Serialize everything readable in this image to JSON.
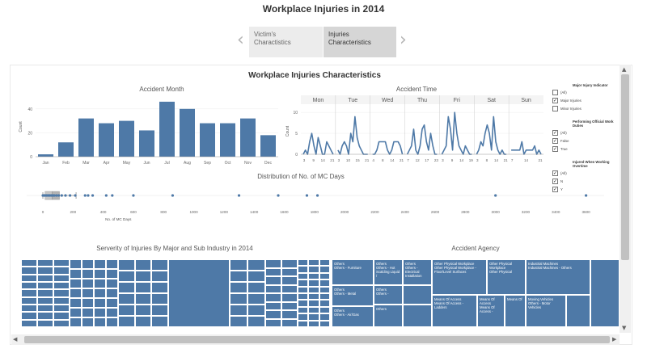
{
  "page_title": "Workplace Injuries in 2014",
  "tabs": [
    {
      "label_line1": "Victim's",
      "label_line2": "Charactistics"
    },
    {
      "label_line1": "Injuries Characteristics",
      "label_line2": ""
    }
  ],
  "dashboard_title": "Workplace Injuries Characteristics",
  "colors": {
    "bar": "#4e79a7",
    "header_bg": "#f4f4f4"
  },
  "icons": {
    "prev": "chevron-left-icon",
    "next": "chevron-right-icon"
  },
  "filters": [
    {
      "title": "Major Injury Indicator",
      "options": [
        {
          "label": "(All)",
          "checked": false
        },
        {
          "label": "Major Injuries",
          "checked": true
        },
        {
          "label": "Minor Injuries",
          "checked": false
        }
      ]
    },
    {
      "title": "Performing Official Work Duties",
      "options": [
        {
          "label": "(All)",
          "checked": true
        },
        {
          "label": "False",
          "checked": true
        },
        {
          "label": "True",
          "checked": true
        }
      ]
    },
    {
      "title": "Injured When Working Overtime",
      "options": [
        {
          "label": "(All)",
          "checked": true
        },
        {
          "label": "N",
          "checked": true
        },
        {
          "label": "Y",
          "checked": true
        }
      ]
    }
  ],
  "chart_data": [
    {
      "type": "bar",
      "title": "Accident Month",
      "ylabel": "Count",
      "xlabel": "",
      "categories": [
        "Jan",
        "Feb",
        "Mar",
        "Apr",
        "May",
        "Jun",
        "Jul",
        "Aug",
        "Sep",
        "Oct",
        "Nov",
        "Dec"
      ],
      "values": [
        2,
        12,
        32,
        28,
        30,
        22,
        46,
        40,
        28,
        28,
        32,
        18
      ],
      "yticks": [
        0,
        20,
        40
      ],
      "ylim": [
        0,
        50
      ]
    },
    {
      "type": "line",
      "title": "Accident Time",
      "ylabel": "Count",
      "xlabel": "",
      "days": [
        "Mon",
        "Tue",
        "Wed",
        "Thu",
        "Fri",
        "Sat",
        "Sun"
      ],
      "day_ticks": [
        [
          "3",
          "9",
          "14",
          "21"
        ],
        [
          "3",
          "10",
          "15",
          "21"
        ],
        [
          "4",
          "8",
          "14",
          "21"
        ],
        [
          "7",
          "12",
          "17",
          "23"
        ],
        [
          "3",
          "9",
          "14",
          "19"
        ],
        [
          "3",
          "8",
          "14",
          "21"
        ],
        [
          "7",
          "14",
          "21"
        ]
      ],
      "yticks": [
        0,
        5,
        10
      ],
      "ylim": [
        0,
        11
      ],
      "series": [
        {
          "day": "Mon",
          "values": [
            0,
            1,
            0,
            3,
            5,
            2,
            0,
            4,
            2,
            0,
            0,
            3,
            2,
            1,
            0
          ]
        },
        {
          "day": "Tue",
          "values": [
            1,
            0,
            2,
            3,
            2,
            0,
            5,
            3,
            9,
            4,
            2,
            1,
            0,
            0,
            0
          ]
        },
        {
          "day": "Wed",
          "values": [
            0,
            0,
            1,
            3,
            3,
            3,
            3,
            1,
            0,
            1,
            3,
            3,
            3,
            2,
            0
          ]
        },
        {
          "day": "Thu",
          "values": [
            0,
            1,
            2,
            6,
            1,
            0,
            2,
            6,
            7,
            3,
            1,
            5,
            2,
            0,
            0
          ]
        },
        {
          "day": "Fri",
          "values": [
            0,
            1,
            2,
            9,
            6,
            1,
            10,
            5,
            2,
            1,
            0,
            2,
            1,
            0,
            0
          ]
        },
        {
          "day": "Sat",
          "values": [
            0,
            1,
            3,
            2,
            5,
            7,
            5,
            1,
            9,
            3,
            1,
            0,
            1,
            0,
            0
          ]
        },
        {
          "day": "Sun",
          "values": [
            1,
            1,
            1,
            1,
            1,
            3,
            0,
            1,
            1,
            1,
            1,
            2,
            0,
            1,
            0
          ]
        }
      ]
    },
    {
      "type": "scatter",
      "title": "Distribution of No. of MC Days",
      "xlabel": "No. of MC Days",
      "ylabel": "",
      "xticks": [
        0,
        200,
        400,
        600,
        800,
        1000,
        1200,
        1400,
        1600,
        1800,
        2000,
        2200,
        2400,
        2600,
        2800,
        3000,
        3200,
        3400,
        3600
      ],
      "xlim": [
        0,
        3720
      ],
      "box": {
        "min": 0,
        "q1": 15,
        "median": 60,
        "q3": 110,
        "whisker_high": 220
      },
      "points": [
        0,
        8,
        15,
        25,
        35,
        45,
        55,
        65,
        75,
        90,
        105,
        125,
        150,
        180,
        215,
        280,
        300,
        330,
        420,
        460,
        600,
        860,
        1300,
        1560,
        1750,
        1820,
        3000,
        3600
      ]
    },
    {
      "type": "heatmap",
      "title": "Serverity of Injuries By Major and Sub Industry in 2014"
    },
    {
      "type": "heatmap",
      "title": "Accident Agency",
      "labels": [
        "Others\nOthers - Furniture",
        "Others\nOthers - Hot Scalding Liquid /",
        "Others\nOthers - Electrical Installation",
        "Other Physical Workplace\nOther Physical Workplace - Floor/Level Surfaces",
        "Other Physical Workplace\nOther Physical",
        "Industrial Machines\nIndustrial Machines - Others",
        "Others\nOthers -",
        "Others\nOthers - Metal",
        "Others\nOthers - Air/Gas",
        "Others",
        "Means Of Access\nMeans Of Access - Ladders",
        "Means Of Access\nMeans Of Access -",
        "Means Of",
        "Moving Vehicles\nOthers - Motor Vehicles"
      ]
    }
  ]
}
